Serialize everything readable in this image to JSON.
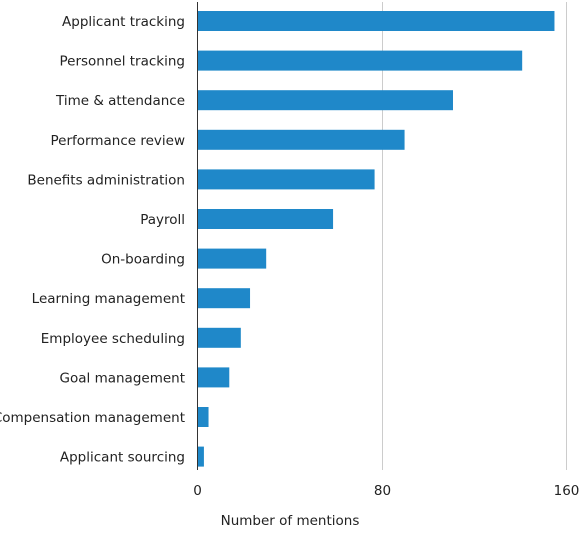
{
  "chart_data": {
    "type": "bar",
    "orientation": "horizontal",
    "categories": [
      "Applicant tracking",
      "Personnel tracking",
      "Time & attendance",
      "Performance review",
      "Benefits administration",
      "Payroll",
      "On-boarding",
      "Learning management",
      "Employee scheduling",
      "Goal management",
      "Compensation management",
      "Applicant sourcing"
    ],
    "values": [
      155,
      141,
      111,
      90,
      77,
      59,
      30,
      23,
      19,
      14,
      5,
      3
    ],
    "xlabel": "Number of mentions",
    "ylabel": "",
    "xlim": [
      0,
      160
    ],
    "xticks": [
      0,
      80,
      160
    ],
    "grid": "vertical",
    "bar_color": "#1f88c9",
    "legend": "none"
  }
}
